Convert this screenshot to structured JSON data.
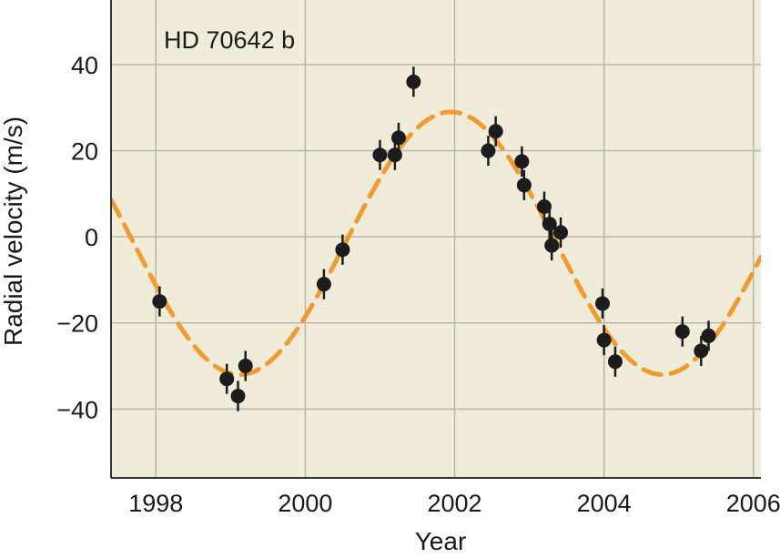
{
  "chart_data": {
    "type": "scatter",
    "title": "HD 70642 b",
    "xlabel": "Year",
    "ylabel": "Radial velocity (m/s)",
    "xlim": [
      1997.4,
      2006.1
    ],
    "ylim": [
      -56,
      55
    ],
    "x_ticks": [
      1998,
      2000,
      2002,
      2004,
      2006
    ],
    "x_tick_labels": [
      "1998",
      "2000",
      "2002",
      "2004",
      "2006"
    ],
    "y_ticks": [
      40,
      20,
      0,
      -20,
      -40
    ],
    "y_tick_labels": [
      "40",
      "20",
      "0",
      "−20",
      "−40"
    ],
    "grid": true,
    "colors": {
      "plot_background": "#efedd9",
      "grid": "#b8b6ad",
      "fit_curve": "#f39a2d",
      "points": "#1c1c1c",
      "axis": "#333333"
    },
    "series": [
      {
        "type": "scatter",
        "x": [
          1998.05,
          1998.95,
          1999.1,
          1999.2,
          2000.25,
          2000.5,
          2001.0,
          2001.2,
          2001.25,
          2001.45,
          2002.45,
          2002.55,
          2002.9,
          2002.93,
          2003.2,
          2003.27,
          2003.3,
          2003.42,
          2003.98,
          2004.0,
          2004.15,
          2005.05,
          2005.3,
          2005.4
        ],
        "y": [
          -15,
          -33,
          -37,
          -30,
          -11,
          -3,
          19,
          19,
          23,
          36,
          20,
          24.5,
          17.5,
          12,
          7,
          3,
          -2,
          1,
          -15.5,
          -24,
          -29,
          -22,
          -26.5,
          -23
        ],
        "error": [
          3.5,
          3.5,
          3.5,
          3.5,
          3.5,
          3.5,
          3.5,
          3.5,
          3.5,
          3.5,
          3.5,
          3.5,
          3.5,
          3.5,
          3.5,
          3.5,
          3.5,
          3.5,
          3.5,
          3.5,
          3.5,
          3.5,
          3.5,
          3.5
        ]
      },
      {
        "type": "line",
        "style": "dashed",
        "period_years": 5.66,
        "amplitude": 30.5,
        "offset": -1.5,
        "peak_year": 2001.95
      }
    ]
  }
}
